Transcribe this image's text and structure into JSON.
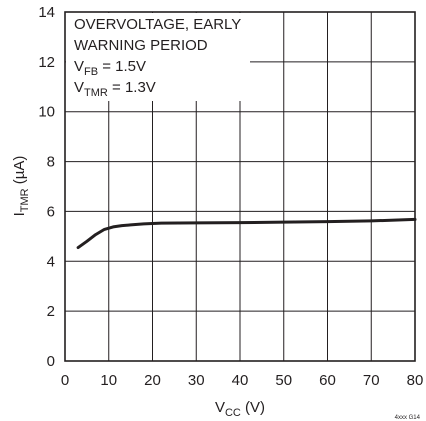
{
  "chart_data": {
    "type": "line",
    "xlabel": {
      "main": "V",
      "sub": "CC",
      "unit": " (V)"
    },
    "ylabel": {
      "main": "I",
      "sub": "TMR",
      "unit": " (µA)"
    },
    "xlim": [
      0,
      80
    ],
    "ylim": [
      0,
      14
    ],
    "xticks": [
      "0",
      "10",
      "20",
      "30",
      "40",
      "50",
      "60",
      "70",
      "80"
    ],
    "yticks": [
      "0",
      "2",
      "4",
      "6",
      "8",
      "10",
      "12",
      "14"
    ],
    "grid": true,
    "annotation": {
      "line1": "OVERVOLTAGE, EARLY",
      "line2": "WARNING PERIOD",
      "line3": {
        "main": "V",
        "sub": "FB",
        "rest": " = 1.5V"
      },
      "line4": {
        "main": "V",
        "sub": "TMR",
        "rest": " = 1.3V"
      }
    },
    "series": [
      {
        "x": [
          3,
          5,
          7,
          9,
          11,
          13,
          15,
          18,
          22,
          30,
          40,
          50,
          60,
          70,
          80
        ],
        "y": [
          4.55,
          4.8,
          5.07,
          5.28,
          5.38,
          5.43,
          5.46,
          5.5,
          5.53,
          5.54,
          5.55,
          5.57,
          5.59,
          5.62,
          5.68
        ],
        "color": "#231f20"
      }
    ],
    "corner_code": "4xxx G14"
  }
}
